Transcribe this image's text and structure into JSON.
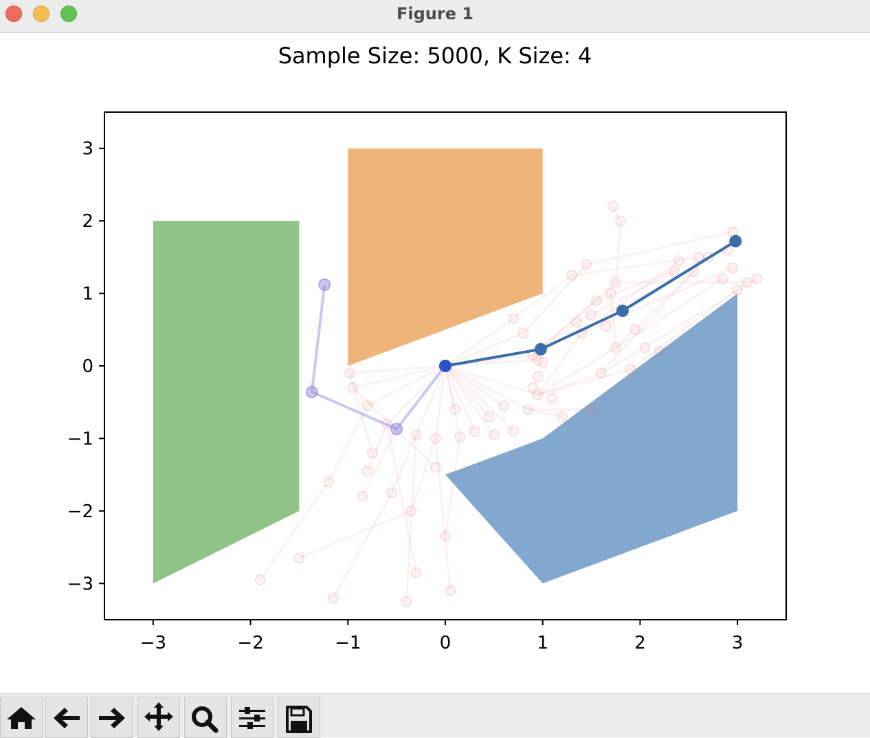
{
  "window": {
    "title": "Figure 1",
    "buttons": [
      "close",
      "minimize",
      "maximize"
    ]
  },
  "toolbar": {
    "tools": [
      {
        "name": "home-icon"
      },
      {
        "name": "back-arrow-icon"
      },
      {
        "name": "forward-arrow-icon"
      },
      {
        "name": "pan-move-icon"
      },
      {
        "name": "zoom-magnifier-icon"
      },
      {
        "name": "configure-subplots-icon"
      },
      {
        "name": "save-floppy-icon"
      }
    ]
  },
  "chart_data": {
    "type": "line",
    "title": "Sample Size: 5000, K Size: 4",
    "xlabel": "",
    "ylabel": "",
    "xlim": [
      -3.5,
      3.5
    ],
    "ylim": [
      -3.5,
      3.5
    ],
    "xticks": [
      -3,
      -2,
      -1,
      0,
      1,
      2,
      3
    ],
    "yticks": [
      -3,
      -2,
      -1,
      0,
      1,
      2,
      3
    ],
    "xtick_labels": [
      "−3",
      "−2",
      "−1",
      "0",
      "1",
      "2",
      "3"
    ],
    "ytick_labels": [
      "−3",
      "−2",
      "−1",
      "0",
      "1",
      "2",
      "3"
    ],
    "grid": false,
    "obstacles": [
      {
        "color": "#8fc486",
        "vertices": [
          [
            -3,
            2
          ],
          [
            -1.5,
            2
          ],
          [
            -1.5,
            -2
          ],
          [
            -3,
            -3
          ]
        ]
      },
      {
        "color": "#efb479",
        "vertices": [
          [
            -1,
            3
          ],
          [
            1,
            3
          ],
          [
            1,
            1
          ],
          [
            -1,
            0
          ]
        ]
      },
      {
        "color": "#82a9cd",
        "vertices": [
          [
            0,
            -1.5
          ],
          [
            1,
            -1
          ],
          [
            3,
            1
          ],
          [
            3,
            -2
          ],
          [
            1,
            -3
          ]
        ]
      }
    ],
    "highlight_paths": [
      {
        "color": "#3a6ea8",
        "opacity": 1.0,
        "points": [
          [
            0,
            0
          ],
          [
            0.98,
            0.23
          ],
          [
            1.82,
            0.76
          ],
          [
            2.98,
            1.72
          ]
        ]
      },
      {
        "color": "#8a86de",
        "opacity": 0.45,
        "points": [
          [
            0,
            0
          ],
          [
            -0.5,
            -0.87
          ],
          [
            -1.37,
            -0.36
          ],
          [
            -1.24,
            1.12
          ]
        ]
      }
    ],
    "start_point": {
      "color": "#2a55c8",
      "point": [
        0,
        0
      ]
    },
    "sample_color": "#e57373",
    "sample_edges": [
      [
        [
          0,
          0
        ],
        [
          0.95,
          -0.4
        ]
      ],
      [
        [
          0,
          0
        ],
        [
          0.9,
          0.15
        ]
      ],
      [
        [
          0,
          0
        ],
        [
          0.85,
          -0.6
        ]
      ],
      [
        [
          0,
          0
        ],
        [
          0.7,
          -0.9
        ]
      ],
      [
        [
          0,
          0
        ],
        [
          0.5,
          -0.95
        ]
      ],
      [
        [
          0,
          0
        ],
        [
          0.3,
          -0.9
        ]
      ],
      [
        [
          0,
          0
        ],
        [
          0.15,
          -0.98
        ]
      ],
      [
        [
          0,
          0
        ],
        [
          -0.1,
          -1.0
        ]
      ],
      [
        [
          0,
          0
        ],
        [
          -0.3,
          -0.95
        ]
      ],
      [
        [
          0,
          0
        ],
        [
          -0.6,
          -0.8
        ]
      ],
      [
        [
          0,
          0
        ],
        [
          -0.8,
          -0.55
        ]
      ],
      [
        [
          0,
          0
        ],
        [
          -0.95,
          -0.3
        ]
      ],
      [
        [
          0,
          0
        ],
        [
          -0.98,
          -0.1
        ]
      ],
      [
        [
          0,
          0
        ],
        [
          0.6,
          -0.55
        ]
      ],
      [
        [
          0,
          0
        ],
        [
          0.45,
          -0.7
        ]
      ],
      [
        [
          0,
          0
        ],
        [
          0.1,
          -0.6
        ]
      ],
      [
        [
          0,
          0
        ],
        [
          0.8,
          0.45
        ]
      ],
      [
        [
          0,
          0
        ],
        [
          0.7,
          0.65
        ]
      ],
      [
        [
          0,
          0
        ],
        [
          0.95,
          0.08
        ]
      ],
      [
        [
          0.95,
          -0.4
        ],
        [
          1.75,
          0.25
        ]
      ],
      [
        [
          0.95,
          -0.4
        ],
        [
          1.6,
          -0.1
        ]
      ],
      [
        [
          0.95,
          -0.4
        ],
        [
          1.4,
          0.45
        ]
      ],
      [
        [
          0.95,
          -0.4
        ],
        [
          1.9,
          -0.05
        ]
      ],
      [
        [
          0.9,
          0.15
        ],
        [
          1.55,
          0.9
        ]
      ],
      [
        [
          0.9,
          0.15
        ],
        [
          1.75,
          1.15
        ]
      ],
      [
        [
          0.9,
          0.15
        ],
        [
          1.35,
          0.6
        ]
      ],
      [
        [
          0.7,
          0.65
        ],
        [
          1.3,
          1.25
        ]
      ],
      [
        [
          0.8,
          0.45
        ],
        [
          1.45,
          1.4
        ]
      ],
      [
        [
          0.85,
          -0.6
        ],
        [
          1.5,
          -0.6
        ]
      ],
      [
        [
          0.85,
          -0.6
        ],
        [
          1.2,
          -0.7
        ]
      ],
      [
        [
          1.75,
          0.25
        ],
        [
          2.7,
          1.5
        ]
      ],
      [
        [
          1.75,
          0.25
        ],
        [
          2.85,
          1.2
        ]
      ],
      [
        [
          1.6,
          -0.1
        ],
        [
          2.55,
          1.3
        ]
      ],
      [
        [
          1.4,
          0.45
        ],
        [
          2.4,
          1.45
        ]
      ],
      [
        [
          1.55,
          0.9
        ],
        [
          2.9,
          1.6
        ]
      ],
      [
        [
          1.75,
          1.15
        ],
        [
          3.1,
          1.15
        ]
      ],
      [
        [
          1.35,
          0.6
        ],
        [
          2.35,
          1.3
        ]
      ],
      [
        [
          1.3,
          1.25
        ],
        [
          2.6,
          1.5
        ]
      ],
      [
        [
          1.45,
          1.4
        ],
        [
          2.95,
          1.85
        ]
      ],
      [
        [
          1.9,
          -0.05
        ],
        [
          3.0,
          1.05
        ]
      ],
      [
        [
          1.6,
          -0.1
        ],
        [
          3.2,
          1.2
        ]
      ],
      [
        [
          1.4,
          0.45
        ],
        [
          2.95,
          1.35
        ]
      ],
      [
        [
          1.75,
          1.15
        ],
        [
          1.8,
          2.0
        ]
      ],
      [
        [
          1.8,
          2.0
        ],
        [
          1.72,
          2.2
        ]
      ],
      [
        [
          1.75,
          0.25
        ],
        [
          1.7,
          1.0
        ]
      ],
      [
        [
          -0.8,
          -0.55
        ],
        [
          -1.2,
          -1.6
        ]
      ],
      [
        [
          -1.2,
          -1.6
        ],
        [
          -1.9,
          -2.95
        ]
      ],
      [
        [
          -0.6,
          -0.8
        ],
        [
          -0.8,
          -1.45
        ]
      ],
      [
        [
          -0.3,
          -0.95
        ],
        [
          -0.55,
          -1.75
        ]
      ],
      [
        [
          -0.55,
          -1.75
        ],
        [
          -1.15,
          -3.2
        ]
      ],
      [
        [
          -0.1,
          -1.0
        ],
        [
          -0.35,
          -2.0
        ]
      ],
      [
        [
          -0.35,
          -2.0
        ],
        [
          -1.5,
          -2.65
        ]
      ],
      [
        [
          -0.3,
          -0.95
        ],
        [
          -0.4,
          -3.25
        ]
      ],
      [
        [
          -0.1,
          -1.0
        ],
        [
          0.05,
          -3.1
        ]
      ],
      [
        [
          -0.6,
          -0.8
        ],
        [
          -0.3,
          -2.85
        ]
      ],
      [
        [
          0.15,
          -0.98
        ],
        [
          0.0,
          -2.35
        ]
      ],
      [
        [
          -0.5,
          -0.87
        ],
        [
          -0.85,
          -1.8
        ]
      ],
      [
        [
          -0.98,
          -0.1
        ],
        [
          -0.75,
          -1.2
        ]
      ],
      [
        [
          -0.95,
          -0.3
        ],
        [
          -0.1,
          -1.4
        ]
      ]
    ],
    "sample_points": [
      [
        0.95,
        -0.4
      ],
      [
        0.9,
        0.15
      ],
      [
        0.85,
        -0.6
      ],
      [
        0.7,
        -0.9
      ],
      [
        0.5,
        -0.95
      ],
      [
        0.3,
        -0.9
      ],
      [
        0.15,
        -0.98
      ],
      [
        -0.1,
        -1.0
      ],
      [
        -0.3,
        -0.95
      ],
      [
        -0.6,
        -0.8
      ],
      [
        -0.8,
        -0.55
      ],
      [
        -0.95,
        -0.3
      ],
      [
        -0.98,
        -0.1
      ],
      [
        0.6,
        -0.55
      ],
      [
        0.45,
        -0.7
      ],
      [
        0.1,
        -0.6
      ],
      [
        0.8,
        0.45
      ],
      [
        0.7,
        0.65
      ],
      [
        0.95,
        0.08
      ],
      [
        1.75,
        0.25
      ],
      [
        1.6,
        -0.1
      ],
      [
        1.4,
        0.45
      ],
      [
        1.9,
        -0.05
      ],
      [
        1.55,
        0.9
      ],
      [
        1.75,
        1.15
      ],
      [
        1.35,
        0.6
      ],
      [
        1.3,
        1.25
      ],
      [
        1.45,
        1.4
      ],
      [
        1.5,
        -0.6
      ],
      [
        1.2,
        -0.7
      ],
      [
        2.7,
        1.5
      ],
      [
        2.85,
        1.2
      ],
      [
        2.55,
        1.3
      ],
      [
        2.4,
        1.45
      ],
      [
        2.9,
        1.6
      ],
      [
        3.1,
        1.15
      ],
      [
        2.35,
        1.3
      ],
      [
        2.6,
        1.5
      ],
      [
        2.95,
        1.85
      ],
      [
        3.0,
        1.05
      ],
      [
        3.2,
        1.2
      ],
      [
        2.95,
        1.35
      ],
      [
        1.8,
        2.0
      ],
      [
        1.72,
        2.2
      ],
      [
        1.7,
        1.0
      ],
      [
        -1.2,
        -1.6
      ],
      [
        -1.9,
        -2.95
      ],
      [
        -0.8,
        -1.45
      ],
      [
        -0.55,
        -1.75
      ],
      [
        -1.15,
        -3.2
      ],
      [
        -0.35,
        -2.0
      ],
      [
        -1.5,
        -2.65
      ],
      [
        -0.4,
        -3.25
      ],
      [
        0.05,
        -3.1
      ],
      [
        -0.3,
        -2.85
      ],
      [
        0.0,
        -2.35
      ],
      [
        -0.85,
        -1.8
      ],
      [
        -0.75,
        -1.2
      ],
      [
        -0.1,
        -1.4
      ],
      [
        1.0,
        0.05
      ],
      [
        0.95,
        -0.15
      ],
      [
        0.9,
        -0.3
      ],
      [
        1.1,
        -0.45
      ],
      [
        2.05,
        0.25
      ],
      [
        1.95,
        0.5
      ],
      [
        1.65,
        0.55
      ],
      [
        1.5,
        0.7
      ],
      [
        2.2,
        0.2
      ]
    ]
  }
}
